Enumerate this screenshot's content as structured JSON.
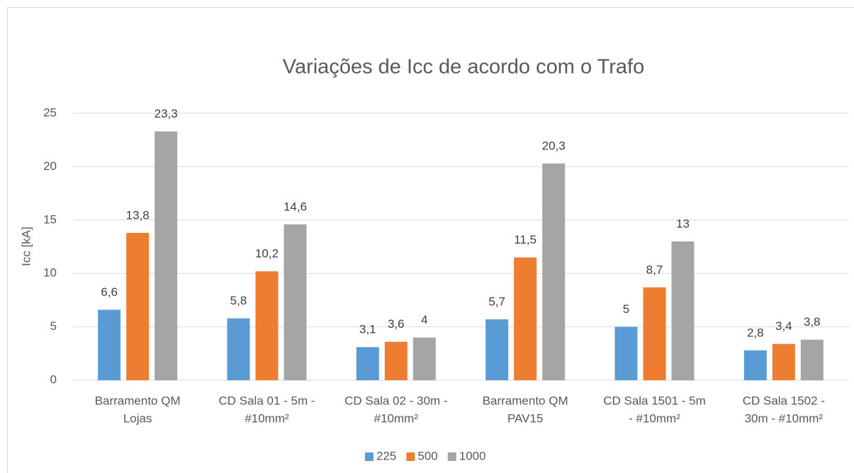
{
  "chart_data": {
    "type": "bar",
    "title": "Variações de Icc de acordo com o Trafo",
    "y_label": "Icc [kA]",
    "categories": [
      [
        "Barramento QM",
        "Lojas"
      ],
      [
        "CD Sala 01 - 5m -",
        "#10mm²"
      ],
      [
        "CD Sala 02 - 30m -",
        "#10mm²"
      ],
      [
        "Barramento QM",
        "PAV15"
      ],
      [
        "CD Sala 1501 - 5m",
        "- #10mm²"
      ],
      [
        "CD Sala 1502 -",
        "30m - #10mm²"
      ]
    ],
    "series": [
      {
        "name": "225",
        "color": "#5b9bd5",
        "values": [
          6.6,
          5.8,
          3.1,
          5.7,
          5,
          2.8
        ],
        "value_labels": [
          "6,6",
          "5,8",
          "3,1",
          "5,7",
          "5",
          "2,8"
        ]
      },
      {
        "name": "500",
        "color": "#ed7d31",
        "values": [
          13.8,
          10.2,
          3.6,
          11.5,
          8.7,
          3.4
        ],
        "value_labels": [
          "13,8",
          "10,2",
          "3,6",
          "11,5",
          "8,7",
          "3,4"
        ]
      },
      {
        "name": "1000",
        "color": "#a5a5a5",
        "values": [
          23.3,
          14.6,
          4,
          20.3,
          13,
          3.8
        ],
        "value_labels": [
          "23,3",
          "14,6",
          "4",
          "20,3",
          "13",
          "3,8"
        ]
      }
    ],
    "ylim": [
      0,
      25
    ],
    "yticks": [
      0,
      5,
      10,
      15,
      20,
      25
    ],
    "grid": true,
    "legend": "bottom"
  }
}
